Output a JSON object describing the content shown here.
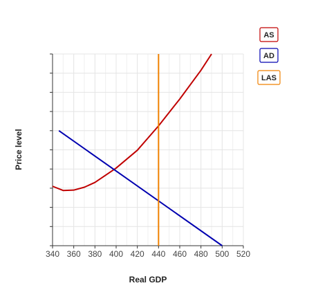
{
  "chart_data": {
    "type": "line",
    "xlabel": "Real GDP",
    "ylabel": "Price level",
    "xlim": [
      340,
      520
    ],
    "xticks": [
      340,
      360,
      380,
      400,
      420,
      440,
      460,
      480,
      500,
      520
    ],
    "ylim": [
      0,
      10
    ],
    "yticks": [
      0,
      1,
      2,
      3,
      4,
      5,
      6,
      7,
      8,
      9,
      10
    ],
    "grid": true,
    "legend": "top-right",
    "series": [
      {
        "name": "AS",
        "color": "#c00000",
        "x": [
          340,
          350,
          360,
          370,
          380,
          400,
          420,
          440,
          460,
          480,
          490
        ],
        "values": [
          3.1,
          2.88,
          2.9,
          3.05,
          3.3,
          4.05,
          4.98,
          6.25,
          7.65,
          9.15,
          10
        ]
      },
      {
        "name": "AD",
        "color": "#0000b0",
        "x": [
          346,
          500
        ],
        "values": [
          6,
          0
        ]
      },
      {
        "name": "LAS",
        "color": "#f08000",
        "x": [
          440,
          440
        ],
        "values": [
          0,
          10
        ]
      }
    ]
  }
}
